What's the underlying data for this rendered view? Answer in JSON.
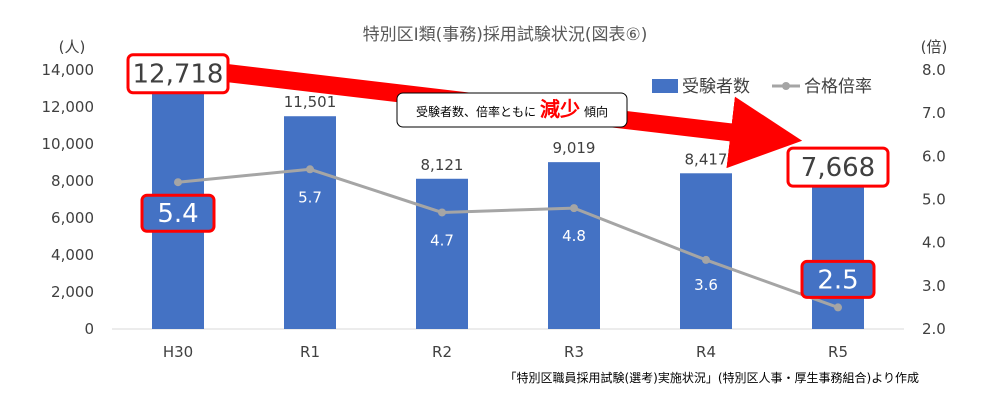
{
  "chart_data": {
    "type": "bar",
    "title": "特別区Ⅰ類(事務)採用試験状況(図表⑥)",
    "categories": [
      "H30",
      "R1",
      "R2",
      "R3",
      "R4",
      "R5"
    ],
    "series": [
      {
        "name": "受験者数",
        "type": "bar",
        "axis": "left",
        "color": "#4472c4",
        "values": [
          12718,
          11501,
          8121,
          9019,
          8417,
          7668
        ],
        "labels": [
          "12,718",
          "11,501",
          "8,121",
          "9,019",
          "8,417",
          "7,668"
        ]
      },
      {
        "name": "合格倍率",
        "type": "line",
        "axis": "right",
        "color": "#a5a5a5",
        "values": [
          5.4,
          5.7,
          4.7,
          4.8,
          3.6,
          2.5
        ],
        "labels": [
          "5.4",
          "5.7",
          "4.7",
          "4.8",
          "3.6",
          "2.5"
        ]
      }
    ],
    "y_left": {
      "unit": "(人)",
      "min": 0,
      "max": 14000,
      "ticks": [
        "0",
        "2,000",
        "4,000",
        "6,000",
        "8,000",
        "10,000",
        "12,000",
        "14,000"
      ]
    },
    "y_right": {
      "unit": "(倍)",
      "min": 2.0,
      "max": 8.0,
      "ticks": [
        "2.0",
        "3.0",
        "4.0",
        "5.0",
        "6.0",
        "7.0",
        "8.0"
      ]
    },
    "legend_position": "top-right",
    "grid": false,
    "highlighted_points": [
      {
        "series": 0,
        "index": 0
      },
      {
        "series": 0,
        "index": 5
      },
      {
        "series": 1,
        "index": 0
      },
      {
        "series": 1,
        "index": 5
      }
    ],
    "callout": {
      "text_before": "受験者数、倍率ともに",
      "emphasis": "減少",
      "text_after": "傾向"
    },
    "source": "「特別区職員採用試験(選考)実施状況」(特別区人事・厚生事務組合)より作成",
    "highlight_color": "#ff0000"
  }
}
